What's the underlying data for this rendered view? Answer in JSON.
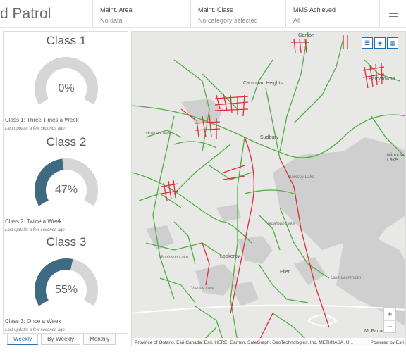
{
  "header": {
    "title": "d Patrol",
    "selectors": [
      {
        "label": "Maint. Area",
        "value": "No data"
      },
      {
        "label": "Maint. Class",
        "value": "No category selected"
      },
      {
        "label": "MMS Achieved",
        "value": "All"
      }
    ]
  },
  "gauges": [
    {
      "title": "Class 1",
      "value_text": "0%",
      "value": 0,
      "caption": "Class 1: Three Times a Week",
      "updated": "Last update: a few seconds ago"
    },
    {
      "title": "Class 2",
      "value_text": "47%",
      "value": 47,
      "caption": "Class 2: Twice a Week",
      "updated": "Last update: a few seconds ago"
    },
    {
      "title": "Class 3",
      "value_text": "55%",
      "value": 55,
      "caption": "Class 3: Once a Week",
      "updated": "Last update: a few seconds ago"
    }
  ],
  "tabs": [
    "Weekly",
    "By-Weekly",
    "Monthly"
  ],
  "colors": {
    "gauge_fill": "#3e6a82",
    "gauge_track": "#d6d6d6",
    "road_green": "#4caf3e",
    "road_red": "#d9303a",
    "water": "#cfcfcf"
  },
  "map": {
    "attribution": "Province of Ontario, Esri Canada, Esri, HERE, Garmin, SafeGraph, GeoTechnologies, Inc, METI/NASA, U...",
    "powered_by": "Powered by Esri",
    "places": {
      "sudbury": "Sudbury",
      "ramsey_lake": "Ramsey Lake",
      "lockerby": "Lockerby",
      "ellen": "Ellen",
      "hollins_creek": "Hollins Creek",
      "robinson_lake": "Robinson Lake",
      "charles_lake": "Charles Lake",
      "capreol": "Cambrian Heights",
      "garson": "Garson",
      "minnow_lake": "Minnow Lake",
      "lake_laurentian": "Lake Laurentian",
      "nepahwin": "Nepahwin Lake",
      "mcfarlane": "McFarlane",
      "barrydowne": "Barrydowne"
    },
    "zoom_in": "+",
    "zoom_out": "−",
    "tools": [
      "legend-icon",
      "layers-icon",
      "basemap-icon"
    ]
  }
}
